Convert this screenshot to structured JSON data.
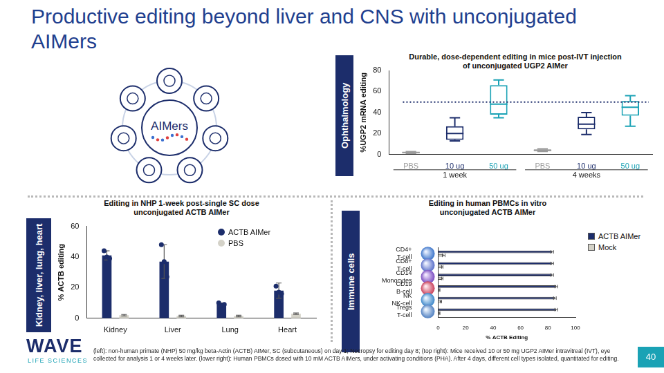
{
  "header": {
    "title": "Productive editing beyond liver and CNS with unconjugated AIMers",
    "hub_label": "AIMers"
  },
  "sections": [
    "Ophthalmology",
    "Kidney, liver, lung, heart",
    "Immune cells"
  ],
  "chart_data": [
    {
      "type": "box",
      "title": "Durable, dose-dependent editing in mice post-IVT injection of unconjugated UGP2 AIMer",
      "y_label": "%UGP2 mRNA editing",
      "categories": [
        "PBS",
        "10 ug",
        "50 ug",
        "PBS",
        "10 ug",
        "50 ug"
      ],
      "groups": [
        "1 week",
        "1 week",
        "1 week",
        "4 weeks",
        "4 weeks",
        "4 weeks"
      ],
      "stats": [
        {
          "min": 1.2,
          "q1": 1.5,
          "median": 2,
          "q3": 2.5,
          "max": 2.8
        },
        {
          "min": 13,
          "q1": 14,
          "median": 20,
          "q3": 27,
          "max": 35
        },
        {
          "min": 35,
          "q1": 38,
          "median": 48,
          "q3": 66,
          "max": 71
        },
        {
          "min": 3,
          "q1": 3.5,
          "median": 4,
          "q3": 5,
          "max": 5.5
        },
        {
          "min": 19,
          "q1": 24,
          "median": 29,
          "q3": 36,
          "max": 40
        },
        {
          "min": 27,
          "q1": 37,
          "median": 45,
          "q3": 51,
          "max": 56
        }
      ],
      "colors": [
        "#9a9a9a",
        "#1c2d6b",
        "#1aa2b5",
        "#9a9a9a",
        "#1c2d6b",
        "#1aa2b5"
      ],
      "reference_line": 50,
      "ylim": [
        0,
        80
      ],
      "yticks": [
        0,
        20,
        40,
        60,
        80
      ],
      "grid": false
    },
    {
      "type": "bar",
      "title": "Editing in NHP 1-week post-single SC dose unconjugated ACTB AIMer",
      "y_label": "% ACTB editing",
      "categories": [
        "Kidney",
        "Liver",
        "Lung",
        "Heart"
      ],
      "series": [
        {
          "name": "ACTB AIMer",
          "color": "#1c2d6b",
          "marker": "circle",
          "values": [
            41,
            37,
            9,
            18
          ],
          "errors": [
            3,
            11,
            1,
            5
          ],
          "points": [
            [
              44,
              40,
              39
            ],
            [
              48,
              37,
              27
            ],
            [
              10,
              8.5,
              9
            ],
            [
              21,
              17,
              16
            ]
          ]
        },
        {
          "name": "PBS",
          "color": "#d4d2c8",
          "marker": "circle",
          "values": [
            2,
            1.5,
            1.5,
            3
          ],
          "errors": [
            0.5,
            0.5,
            0.5,
            0.5
          ]
        }
      ],
      "ylim": [
        0,
        60
      ],
      "yticks": [
        0,
        20,
        40,
        60
      ],
      "legend": "top-right",
      "grid": false
    },
    {
      "type": "bar",
      "orientation": "horizontal",
      "title": "Editing in human PBMCs in vitro unconjugated ACTB AIMer",
      "x_label": "% ACTB Editing",
      "categories": [
        "CD4+ T-cell",
        "CD8+ T-cell",
        "CD14 Monocytes",
        "CD19 B-cell",
        "NK NK-cell",
        "Tregs T-cell"
      ],
      "series": [
        {
          "name": "ACTB AIMer",
          "color": "#1c2d6b",
          "marker": "square",
          "values": [
            83,
            83,
            83,
            86,
            85,
            86
          ],
          "errors": [
            1,
            1,
            1,
            1,
            1,
            1
          ]
        },
        {
          "name": "Mock",
          "color": "#d4d2c8",
          "marker": "square",
          "values": [
            4,
            3,
            3,
            1,
            2,
            1
          ],
          "errors": [
            1,
            0.5,
            0.5,
            0.3,
            0.5,
            0.3
          ]
        }
      ],
      "xlim": [
        0,
        100
      ],
      "xticks": [
        0,
        20,
        40,
        60,
        80,
        100
      ],
      "legend": "right",
      "grid": false
    }
  ],
  "footnote": "(left): non-human primate (NHP) 50 mg/kg beta-Actin (ACTB) AIMer, SC (subcutaneous) on day 1; Necropsy for editing day 8; (top right): Mice received 10 or 50 mg UGP2 AIMer intravitreal (IVT), eye collected for analysis 1 or 4 weeks later. (lower right): Human PBMCs dosed with 10 mM ACTB AIMers, under activating conditions (PHA). After 4 days, different cell types isolated, quantitated for editing.",
  "logo": {
    "name": "WAVE",
    "tagline": "LIFE SCIENCES"
  },
  "page_number": 40
}
